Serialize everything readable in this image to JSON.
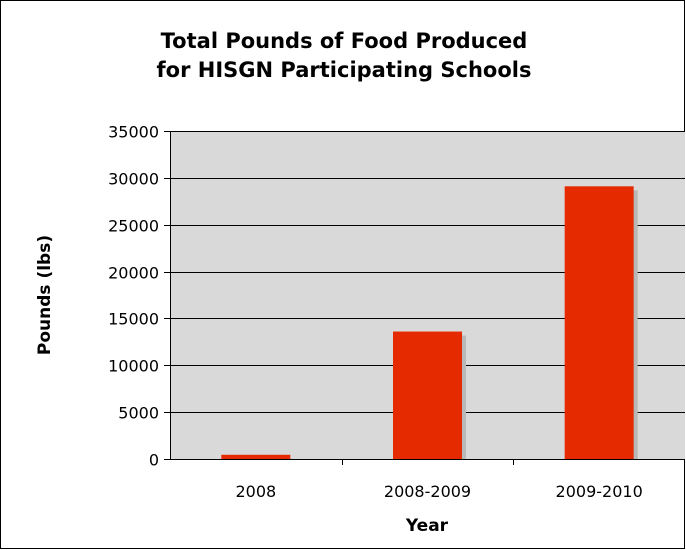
{
  "chart_data": {
    "type": "bar",
    "title_lines": [
      "Total Pounds of Food Produced",
      "for HISGN Participating Schools"
    ],
    "xlabel": "Year",
    "ylabel": "Pounds (lbs)",
    "categories": [
      "2008",
      "2008-2009",
      "2009-2010"
    ],
    "values": [
      450,
      13600,
      29100
    ],
    "ylim": [
      0,
      35000
    ],
    "yticks": [
      "0",
      "5000",
      "10000",
      "15000",
      "20000",
      "25000",
      "30000",
      "35000"
    ],
    "grid": true,
    "legend": "none",
    "colors": {
      "bar": "#e62a00",
      "bar_shadow": "#b8b8b8",
      "plot_background": "#d9d9d9",
      "gridline": "#000000"
    }
  }
}
